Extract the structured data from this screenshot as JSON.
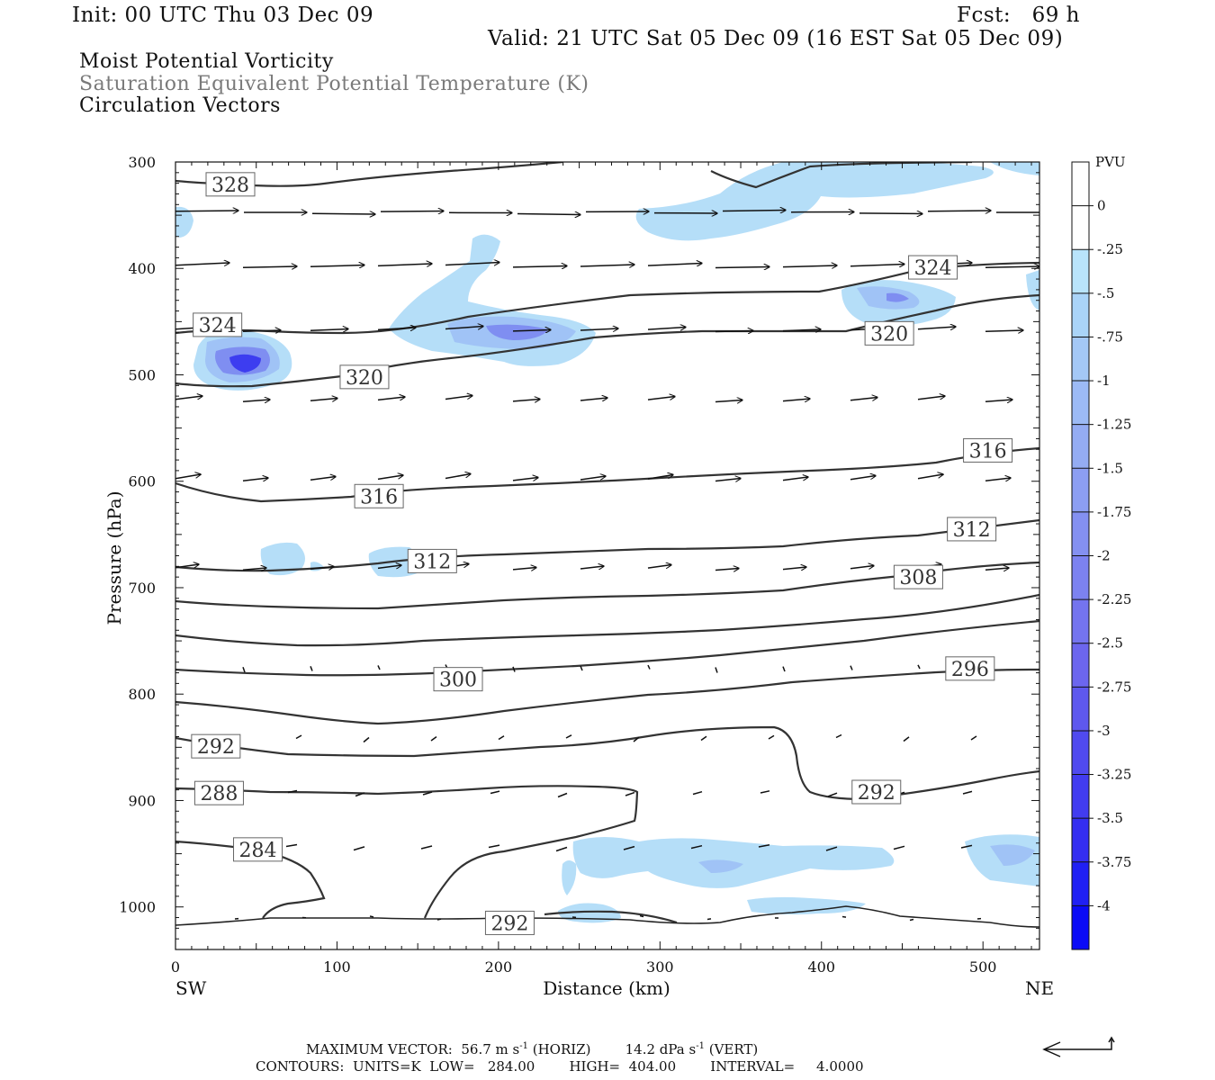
{
  "header": {
    "init": "Init: 00 UTC Thu 03 Dec 09",
    "fcst": "Fcst:   69 h",
    "valid": "Valid: 21 UTC Sat 05 Dec 09 (16 EST Sat 05 Dec 09)",
    "fields": [
      "Moist Potential Vorticity",
      "Saturation Equivalent Potential Temperature (K)",
      "Circulation Vectors"
    ]
  },
  "footer": {
    "max_vector": "MAXIMUM VECTOR:  56.7 m s",
    "max_vector_mid": " (HORIZ)        14.2 dPa s",
    "max_vector_end": " (VERT)",
    "exponent": "-1",
    "contours": "CONTOURS:  UNITS=K  LOW=   284.00        HIGH=  404.00        INTERVAL=     4.0000"
  },
  "colors": {
    "pv_fill_light": "#aad8f8",
    "pv_fill_mid": "#8fa8f4",
    "pv_fill_dark": "#3a3af0",
    "contour": "#333333",
    "vector": "#111111"
  },
  "chart_data": {
    "type": "cross-section",
    "xlabel": "Distance (km)",
    "ylabel": "Pressure (hPa)",
    "x_left_label": "SW",
    "x_right_label": "NE",
    "xlim": [
      0,
      535
    ],
    "ylim": [
      1040,
      300
    ],
    "x_ticks": [
      0,
      100,
      200,
      300,
      400,
      500
    ],
    "y_ticks": [
      300,
      400,
      500,
      600,
      700,
      800,
      900,
      1000
    ],
    "colorbar": {
      "units": "PVU",
      "levels": [
        "0",
        "-.25",
        "-.5",
        "-.75",
        "-1",
        "-1.25",
        "-1.5",
        "-1.75",
        "-2",
        "-2.25",
        "-2.5",
        "-2.75",
        "-3",
        "-3.25",
        "-3.5",
        "-3.75",
        "-4"
      ],
      "colors": [
        "#ffffff",
        "#ffffff",
        "#b9e4fb",
        "#aad4f8",
        "#a4c8f6",
        "#9cbaf5",
        "#94acf3",
        "#8c9ef2",
        "#8490f1",
        "#7c82f0",
        "#7474ef",
        "#6c66ee",
        "#5e58ee",
        "#504aef",
        "#423cf0",
        "#342ef1",
        "#2020f4",
        "#0b0bf6"
      ]
    },
    "contour_labels": [
      {
        "value": "328",
        "x": 34,
        "p": 321
      },
      {
        "value": "324",
        "x": 26,
        "p": 453
      },
      {
        "value": "320",
        "x": 117,
        "p": 502
      },
      {
        "value": "324",
        "x": 469,
        "p": 399
      },
      {
        "value": "320",
        "x": 442,
        "p": 461
      },
      {
        "value": "316",
        "x": 503,
        "p": 571
      },
      {
        "value": "316",
        "x": 126,
        "p": 614
      },
      {
        "value": "312",
        "x": 493,
        "p": 645
      },
      {
        "value": "312",
        "x": 159,
        "p": 675
      },
      {
        "value": "308",
        "x": 460,
        "p": 690
      },
      {
        "value": "300",
        "x": 175,
        "p": 786
      },
      {
        "value": "296",
        "x": 492,
        "p": 776
      },
      {
        "value": "292",
        "x": 25,
        "p": 849
      },
      {
        "value": "288",
        "x": 27,
        "p": 893
      },
      {
        "value": "284",
        "x": 51,
        "p": 946
      },
      {
        "value": "292",
        "x": 434,
        "p": 892
      },
      {
        "value": "292",
        "x": 207,
        "p": 1015
      }
    ]
  }
}
